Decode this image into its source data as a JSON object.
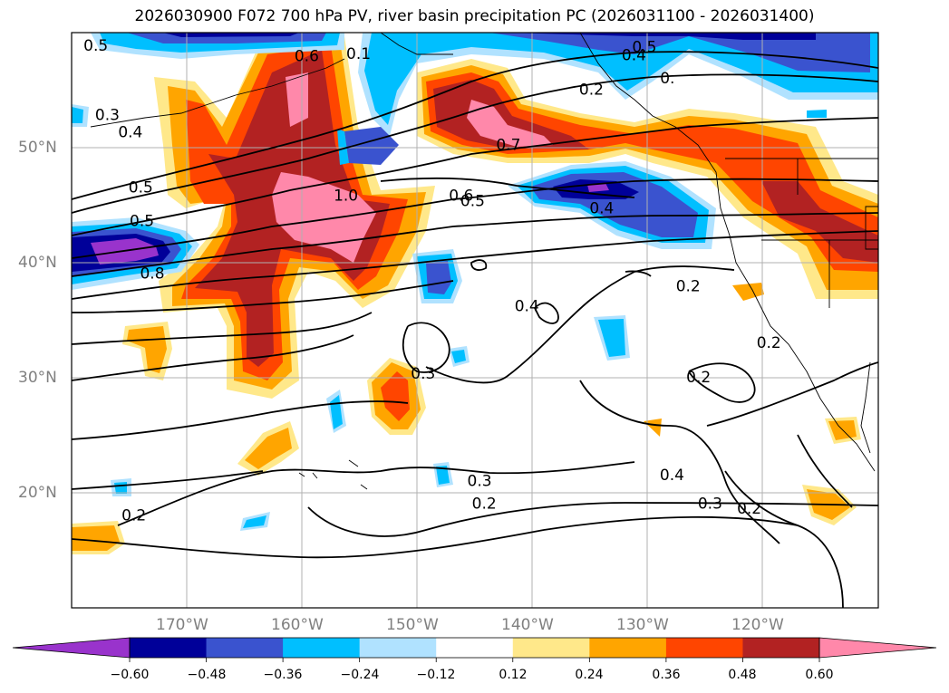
{
  "title": "2026030900 F072 700 hPa PV, river basin precipitation PC (2026031100 - 2026031400)",
  "map": {
    "projection": "PlateCarree",
    "lon_range": [
      -180,
      -110
    ],
    "lat_range": [
      10,
      60
    ],
    "lon_ticks": [
      "170°W",
      "160°W",
      "150°W",
      "140°W",
      "130°W",
      "120°W"
    ],
    "lat_ticks": [
      "50°N",
      "40°N",
      "30°N",
      "20°N"
    ],
    "gridlines": true
  },
  "colorbar": {
    "levels": [
      "−0.60",
      "−0.48",
      "−0.36",
      "−0.24",
      "−0.12",
      "0.12",
      "0.24",
      "0.36",
      "0.48",
      "0.60"
    ],
    "colors": [
      "#9933cc",
      "#000099",
      "#3a53cf",
      "#00bfff",
      "#b0e2ff",
      "#ffffff",
      "#ffe88a",
      "#ffa500",
      "#ff4500",
      "#b22222",
      "#ff88aa"
    ],
    "extend": "both"
  },
  "pv_contour_labels": [
    {
      "text": "0.5",
      "lon": -177.9,
      "lat": 58.8
    },
    {
      "text": "0.6",
      "lon": -159.6,
      "lat": 57.9
    },
    {
      "text": "0.1",
      "lon": -155.1,
      "lat": 58.1
    },
    {
      "text": "0.3",
      "lon": -176.9,
      "lat": 52.8
    },
    {
      "text": "0.4",
      "lon": -174.9,
      "lat": 51.3
    },
    {
      "text": "0.5",
      "lon": -130.3,
      "lat": 58.7
    },
    {
      "text": "0.4",
      "lon": -131.2,
      "lat": 58.0
    },
    {
      "text": "0.",
      "lon": -128.3,
      "lat": 56.0
    },
    {
      "text": "0.2",
      "lon": -134.9,
      "lat": 55.0
    },
    {
      "text": "0.7",
      "lon": -142.1,
      "lat": 50.2
    },
    {
      "text": "0.5",
      "lon": -174.0,
      "lat": 46.5
    },
    {
      "text": "1.0",
      "lon": -156.2,
      "lat": 45.8
    },
    {
      "text": "0.6",
      "lon": -146.2,
      "lat": 45.8
    },
    {
      "text": "0.5",
      "lon": -145.2,
      "lat": 45.3
    },
    {
      "text": "0.4",
      "lon": -134.0,
      "lat": 44.7
    },
    {
      "text": "0.5",
      "lon": -173.9,
      "lat": 43.6
    },
    {
      "text": "0.8",
      "lon": -173.0,
      "lat": 39.0
    },
    {
      "text": "0.2",
      "lon": -126.5,
      "lat": 37.9
    },
    {
      "text": "0.2",
      "lon": -119.5,
      "lat": 33.0
    },
    {
      "text": "0.4",
      "lon": -140.5,
      "lat": 36.2
    },
    {
      "text": "0.3",
      "lon": -149.5,
      "lat": 30.3
    },
    {
      "text": "0.2",
      "lon": -125.6,
      "lat": 30.0
    },
    {
      "text": "0.4",
      "lon": -127.9,
      "lat": 21.5
    },
    {
      "text": "0.3",
      "lon": -124.6,
      "lat": 19.0
    },
    {
      "text": "0.2",
      "lon": -121.2,
      "lat": 18.6
    },
    {
      "text": "0.3",
      "lon": -144.6,
      "lat": 21.0
    },
    {
      "text": "0.2",
      "lon": -144.2,
      "lat": 19.0
    },
    {
      "text": "0.2",
      "lon": -174.6,
      "lat": 18.0
    }
  ]
}
